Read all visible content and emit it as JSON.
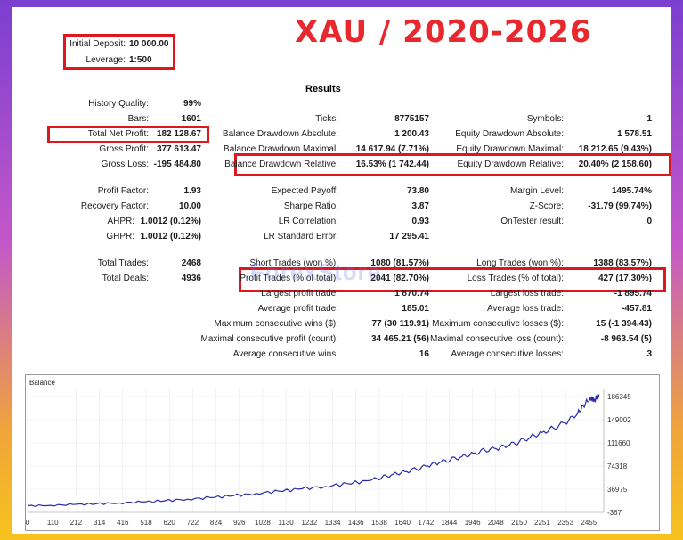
{
  "big_title": "XAU / 2020-2026",
  "deposit": {
    "initial_deposit_label": "Initial Deposit:",
    "initial_deposit_value": "10 000.00",
    "leverage_label": "Leverage:",
    "leverage_value": "1:500"
  },
  "results_title": "Results",
  "col1": {
    "history_quality": {
      "label": "History Quality:",
      "value": "99%"
    },
    "bars": {
      "label": "Bars:",
      "value": "1601"
    },
    "total_net_profit": {
      "label": "Total Net Profit:",
      "value": "182 128.67"
    },
    "gross_profit": {
      "label": "Gross Profit:",
      "value": "377 613.47"
    },
    "gross_loss": {
      "label": "Gross Loss:",
      "value": "-195 484.80"
    },
    "profit_factor": {
      "label": "Profit Factor:",
      "value": "1.93"
    },
    "recovery_factor": {
      "label": "Recovery Factor:",
      "value": "10.00"
    },
    "ahpr": {
      "label": "AHPR:",
      "value": "1.0012 (0.12%)"
    },
    "ghpr": {
      "label": "GHPR:",
      "value": "1.0012 (0.12%)"
    },
    "total_trades": {
      "label": "Total Trades:",
      "value": "2468"
    },
    "total_deals": {
      "label": "Total Deals:",
      "value": "4936"
    }
  },
  "col2": {
    "ticks": {
      "label": "Ticks:",
      "value": "8775157"
    },
    "balance_dd_abs": {
      "label": "Balance Drawdown Absolute:",
      "value": "1 200.43"
    },
    "balance_dd_max": {
      "label": "Balance Drawdown Maximal:",
      "value": "14 617.94 (7.71%)"
    },
    "balance_dd_rel": {
      "label": "Balance Drawdown Relative:",
      "value": "16.53% (1 742.44)"
    },
    "expected_payoff": {
      "label": "Expected Payoff:",
      "value": "73.80"
    },
    "sharpe_ratio": {
      "label": "Sharpe Ratio:",
      "value": "3.87"
    },
    "lr_correlation": {
      "label": "LR Correlation:",
      "value": "0.93"
    },
    "lr_std_error": {
      "label": "LR Standard Error:",
      "value": "17 295.41"
    },
    "short_trades": {
      "label": "Short Trades (won %):",
      "value": "1080 (81.57%)"
    },
    "profit_trades": {
      "label": "Profit Trades (% of total):",
      "value": "2041 (82.70%)"
    },
    "largest_profit": {
      "label": "Largest profit trade:",
      "value": "1 870.74"
    },
    "average_profit": {
      "label": "Average profit trade:",
      "value": "185.01"
    },
    "max_consec_wins": {
      "label": "Maximum consecutive wins ($):",
      "value": "77 (30 119.91)"
    },
    "maximal_consec_profit": {
      "label": "Maximal consecutive profit (count):",
      "value": "34 465.21 (56)"
    },
    "avg_consec_wins": {
      "label": "Average consecutive wins:",
      "value": "16"
    }
  },
  "col3": {
    "symbols": {
      "label": "Symbols:",
      "value": "1"
    },
    "equity_dd_abs": {
      "label": "Equity Drawdown Absolute:",
      "value": "1 578.51"
    },
    "equity_dd_max": {
      "label": "Equity Drawdown Maximal:",
      "value": "18 212.65 (9.43%)"
    },
    "equity_dd_rel": {
      "label": "Equity Drawdown Relative:",
      "value": "20.40% (2 158.60)"
    },
    "margin_level": {
      "label": "Margin Level:",
      "value": "1495.74%"
    },
    "z_score": {
      "label": "Z-Score:",
      "value": "-31.79 (99.74%)"
    },
    "ontester": {
      "label": "OnTester result:",
      "value": "0"
    },
    "long_trades": {
      "label": "Long Trades (won %):",
      "value": "1388 (83.57%)"
    },
    "loss_trades": {
      "label": "Loss Trades (% of total):",
      "value": "427 (17.30%)"
    },
    "largest_loss": {
      "label": "Largest loss trade:",
      "value": "-1 895.74"
    },
    "average_loss": {
      "label": "Average loss trade:",
      "value": "-457.81"
    },
    "max_consec_losses": {
      "label": "Maximum consecutive losses ($):",
      "value": "15 (-1 394.43)"
    },
    "maximal_consec_loss": {
      "label": "Maximal consecutive loss (count):",
      "value": "-8 963.54 (5)"
    },
    "avg_consec_losses": {
      "label": "Average consecutive losses:",
      "value": "3"
    }
  },
  "watermark": "ForexStore",
  "chart_data": {
    "type": "line",
    "title": "Balance",
    "x_ticks": [
      "0",
      "110",
      "212",
      "314",
      "416",
      "518",
      "620",
      "722",
      "824",
      "926",
      "1028",
      "1130",
      "1232",
      "1334",
      "1436",
      "1538",
      "1640",
      "1742",
      "1844",
      "1946",
      "2048",
      "2150",
      "2251",
      "2353",
      "2455"
    ],
    "y_ticks": [
      "186345",
      "149002",
      "111660",
      "74318",
      "36975",
      "-367"
    ],
    "xlim": [
      0,
      2520
    ],
    "ylim": [
      -367,
      194000
    ],
    "line_color": "#2a2aa8",
    "series": [
      {
        "x": [
          0,
          100,
          200,
          300,
          400,
          500,
          600,
          700,
          800,
          900,
          1000,
          1100,
          1200,
          1300,
          1400,
          1500,
          1550,
          1600,
          1650,
          1700,
          1750,
          1800,
          1850,
          1900,
          1950,
          2000,
          2050,
          2100,
          2150,
          2200,
          2250,
          2300,
          2350,
          2400,
          2430,
          2460,
          2480,
          2500
        ],
        "y": [
          10000,
          10800,
          12000,
          13200,
          14500,
          16000,
          18000,
          20500,
          23000,
          26000,
          29500,
          33000,
          37000,
          40500,
          45000,
          50000,
          55000,
          60000,
          64000,
          68000,
          73000,
          78000,
          83000,
          88000,
          93000,
          98000,
          100000,
          105000,
          111000,
          119000,
          126000,
          133000,
          141000,
          153000,
          168000,
          180000,
          178000,
          186000
        ]
      }
    ]
  }
}
